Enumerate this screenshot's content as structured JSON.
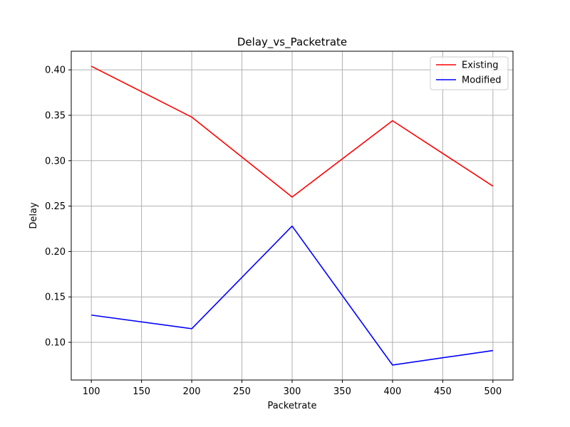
{
  "chart_data": {
    "type": "line",
    "title": "Delay_vs_Packetrate",
    "xlabel": "Packetrate",
    "ylabel": "Delay",
    "x": [
      100,
      200,
      300,
      400,
      500
    ],
    "xlim": [
      80,
      520
    ],
    "ylim": [
      0.0585,
      0.4205
    ],
    "xticks": [
      100,
      150,
      200,
      250,
      300,
      350,
      400,
      450,
      500
    ],
    "yticks": [
      0.1,
      0.15,
      0.2,
      0.25,
      0.3,
      0.35,
      0.4
    ],
    "ytick_labels": [
      "0.10",
      "0.15",
      "0.20",
      "0.25",
      "0.30",
      "0.35",
      "0.40"
    ],
    "grid": true,
    "legend_position": "top-right",
    "series": [
      {
        "name": "Existing",
        "color": "#ff0000",
        "values": [
          0.404,
          0.348,
          0.26,
          0.344,
          0.272
        ]
      },
      {
        "name": "Modified",
        "color": "#0000ff",
        "values": [
          0.13,
          0.115,
          0.228,
          0.075,
          0.091
        ]
      }
    ]
  }
}
